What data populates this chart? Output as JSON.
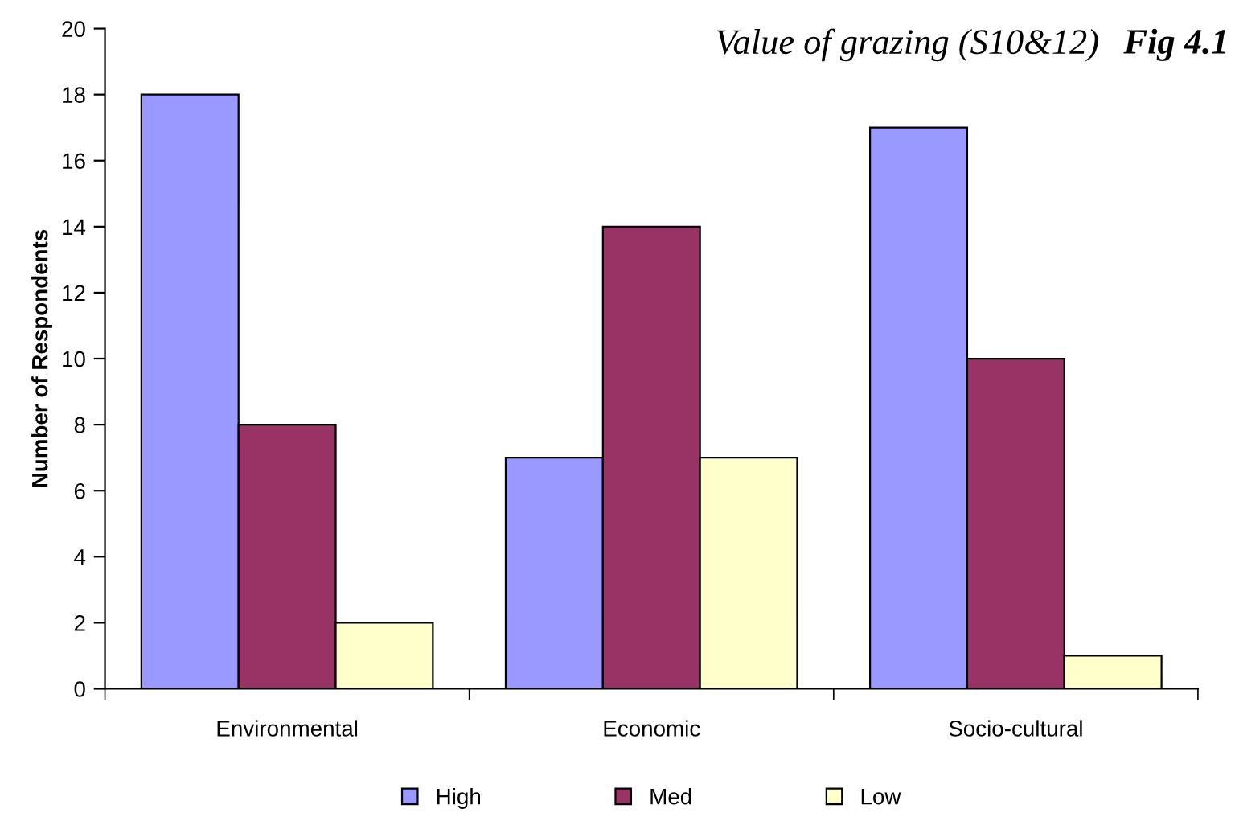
{
  "chart_data": {
    "type": "bar",
    "title": "Value of grazing (S10&12)",
    "annotations": [
      "Fig 4.1"
    ],
    "ylabel": "Number of Respondents",
    "categories": [
      "Environmental",
      "Economic",
      "Socio-cultural"
    ],
    "series": [
      {
        "name": "High",
        "color": "#9999ff",
        "values": [
          18,
          7,
          17
        ]
      },
      {
        "name": "Med",
        "color": "#993366",
        "values": [
          8,
          14,
          10
        ]
      },
      {
        "name": "Low",
        "color": "#ffffcc",
        "values": [
          2,
          7,
          1
        ]
      }
    ],
    "ylim": [
      0,
      20
    ],
    "yticks": [
      0,
      2,
      4,
      6,
      8,
      10,
      12,
      14,
      16,
      18,
      20
    ],
    "grid": false,
    "legend": "bottom"
  }
}
